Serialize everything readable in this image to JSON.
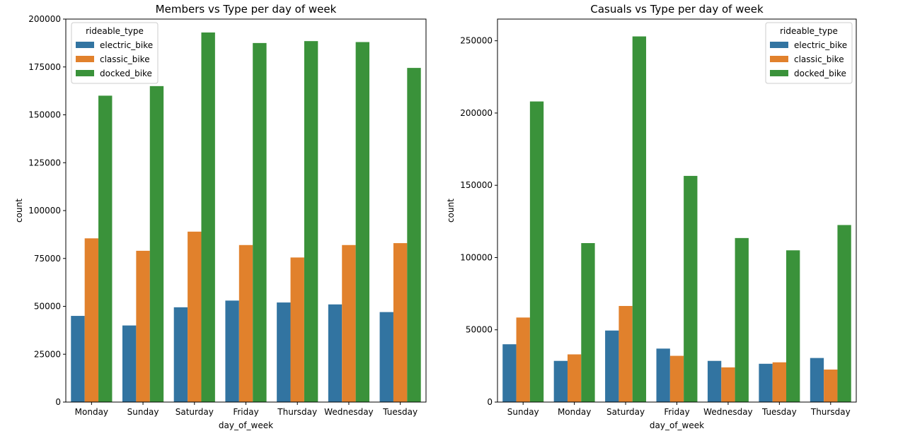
{
  "chart_data": [
    {
      "type": "bar",
      "title": "Members vs Type per day of week",
      "xlabel": "day_of_week",
      "ylabel": "count",
      "ylim": [
        0,
        200000
      ],
      "yticks": [
        0,
        25000,
        50000,
        75000,
        100000,
        125000,
        150000,
        175000,
        200000
      ],
      "categories": [
        "Monday",
        "Sunday",
        "Saturday",
        "Friday",
        "Thursday",
        "Wednesday",
        "Tuesday"
      ],
      "legend": {
        "title": "rideable_type",
        "placement": "top-left"
      },
      "series": [
        {
          "name": "electric_bike",
          "color": "#3274a1",
          "values": [
            45000,
            40000,
            49500,
            53000,
            52000,
            51000,
            47000
          ]
        },
        {
          "name": "classic_bike",
          "color": "#e1812c",
          "values": [
            85500,
            79000,
            89000,
            82000,
            75500,
            82000,
            83000
          ]
        },
        {
          "name": "docked_bike",
          "color": "#3a923a",
          "values": [
            160000,
            165000,
            193000,
            187500,
            188500,
            188000,
            174500
          ]
        }
      ]
    },
    {
      "type": "bar",
      "title": "Casuals vs Type per day of week",
      "xlabel": "day_of_week",
      "ylabel": "count",
      "ylim": [
        0,
        265000
      ],
      "yticks": [
        0,
        50000,
        100000,
        150000,
        200000,
        250000
      ],
      "categories": [
        "Sunday",
        "Monday",
        "Saturday",
        "Friday",
        "Wednesday",
        "Tuesday",
        "Thursday"
      ],
      "legend": {
        "title": "rideable_type",
        "placement": "top-right"
      },
      "series": [
        {
          "name": "electric_bike",
          "color": "#3274a1",
          "values": [
            40000,
            28500,
            49500,
            37000,
            28500,
            26500,
            30500
          ]
        },
        {
          "name": "classic_bike",
          "color": "#e1812c",
          "values": [
            58500,
            33000,
            66500,
            32000,
            24000,
            27500,
            22500
          ]
        },
        {
          "name": "docked_bike",
          "color": "#3a923a",
          "values": [
            208000,
            110000,
            253000,
            156500,
            113500,
            105000,
            122500
          ]
        }
      ]
    }
  ]
}
